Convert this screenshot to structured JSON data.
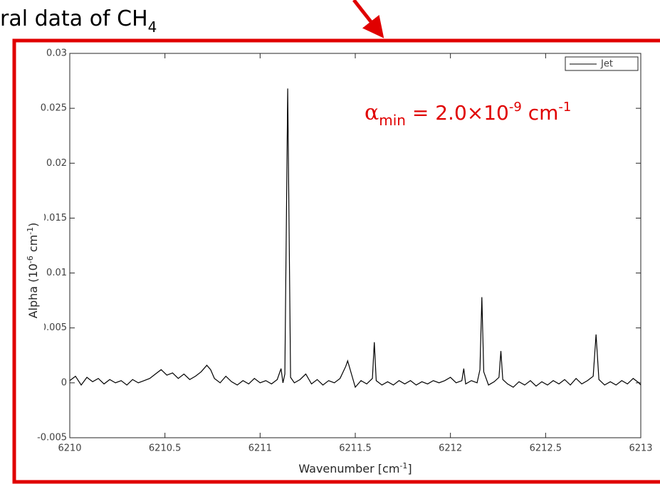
{
  "chart_data": {
    "type": "line",
    "title": [
      "ral data of CH",
      "4"
    ],
    "annotation": [
      "α",
      "min",
      " = 2.0×10",
      "-9",
      " cm",
      "-1"
    ],
    "x_label": [
      "Wavenumber [cm",
      "-1",
      "]"
    ],
    "y_label": [
      "Alpha (10",
      "-6",
      " cm",
      "-1",
      ")"
    ],
    "xlim": [
      6210,
      6213
    ],
    "ylim": [
      -0.005,
      0.03
    ],
    "xticks": [
      6210,
      6210.5,
      6211,
      6211.5,
      6212,
      6212.5,
      6213
    ],
    "yticks": [
      -0.005,
      0,
      0.005,
      0.01,
      0.015,
      0.02,
      0.025,
      0.03
    ],
    "legend": "upper right",
    "x": [
      6210.0,
      6210.03,
      6210.06,
      6210.09,
      6210.12,
      6210.15,
      6210.18,
      6210.21,
      6210.24,
      6210.27,
      6210.3,
      6210.33,
      6210.36,
      6210.39,
      6210.42,
      6210.45,
      6210.48,
      6210.51,
      6210.54,
      6210.57,
      6210.6,
      6210.63,
      6210.66,
      6210.69,
      6210.72,
      6210.74,
      6210.76,
      6210.79,
      6210.82,
      6210.85,
      6210.88,
      6210.91,
      6210.94,
      6210.97,
      6211.0,
      6211.03,
      6211.06,
      6211.09,
      6211.11,
      6211.12,
      6211.13,
      6211.145,
      6211.16,
      6211.18,
      6211.21,
      6211.24,
      6211.27,
      6211.3,
      6211.33,
      6211.36,
      6211.39,
      6211.42,
      6211.45,
      6211.46,
      6211.48,
      6211.5,
      6211.53,
      6211.56,
      6211.59,
      6211.6,
      6211.61,
      6211.64,
      6211.67,
      6211.7,
      6211.73,
      6211.76,
      6211.79,
      6211.82,
      6211.85,
      6211.88,
      6211.91,
      6211.94,
      6211.97,
      6212.0,
      6212.03,
      6212.06,
      6212.07,
      6212.08,
      6212.11,
      6212.14,
      6212.155,
      6212.165,
      6212.175,
      6212.2,
      6212.23,
      6212.255,
      6212.265,
      6212.275,
      6212.3,
      6212.33,
      6212.36,
      6212.39,
      6212.42,
      6212.45,
      6212.48,
      6212.51,
      6212.54,
      6212.57,
      6212.6,
      6212.63,
      6212.66,
      6212.69,
      6212.72,
      6212.75,
      6212.765,
      6212.78,
      6212.81,
      6212.84,
      6212.87,
      6212.9,
      6212.93,
      6212.96,
      6212.99,
      6213.0
    ],
    "series": [
      {
        "name": "Jet",
        "color": "#000000",
        "values": [
          0.0002,
          0.0006,
          -0.0002,
          0.0005,
          0.0001,
          0.0004,
          -0.0001,
          0.0003,
          0.0,
          0.0002,
          -0.0002,
          0.0003,
          0.0,
          0.0002,
          0.0004,
          0.0008,
          0.0012,
          0.0007,
          0.0009,
          0.0004,
          0.0008,
          0.0003,
          0.0006,
          0.001,
          0.0016,
          0.0012,
          0.0004,
          0.0,
          0.0006,
          0.0001,
          -0.0002,
          0.0002,
          -0.0001,
          0.0004,
          0.0,
          0.0002,
          -0.0001,
          0.0003,
          0.0013,
          0.0,
          0.0008,
          0.0268,
          0.0005,
          0.0,
          0.0003,
          0.0008,
          -0.0001,
          0.0003,
          -0.0002,
          0.0002,
          0.0,
          0.0004,
          0.0015,
          0.002,
          0.0008,
          -0.0004,
          0.0002,
          -0.0001,
          0.0004,
          0.0037,
          0.0002,
          -0.0002,
          0.0001,
          -0.0002,
          0.0002,
          -0.0001,
          0.0002,
          -0.0002,
          0.0001,
          -0.0001,
          0.0002,
          0.0,
          0.0002,
          0.0005,
          0.0,
          0.0002,
          0.0013,
          -0.0001,
          0.0002,
          0.0,
          0.0012,
          0.0078,
          0.001,
          -0.0002,
          0.0001,
          0.0005,
          0.0029,
          0.0003,
          -0.0001,
          -0.0004,
          0.0001,
          -0.0002,
          0.0002,
          -0.0003,
          0.0001,
          -0.0002,
          0.0002,
          -0.0001,
          0.0003,
          -0.0002,
          0.0004,
          -0.0001,
          0.0002,
          0.0006,
          0.0044,
          0.0003,
          -0.0002,
          0.0001,
          -0.0002,
          0.0002,
          -0.0001,
          0.0004,
          0.0,
          -0.0002
        ]
      }
    ]
  }
}
